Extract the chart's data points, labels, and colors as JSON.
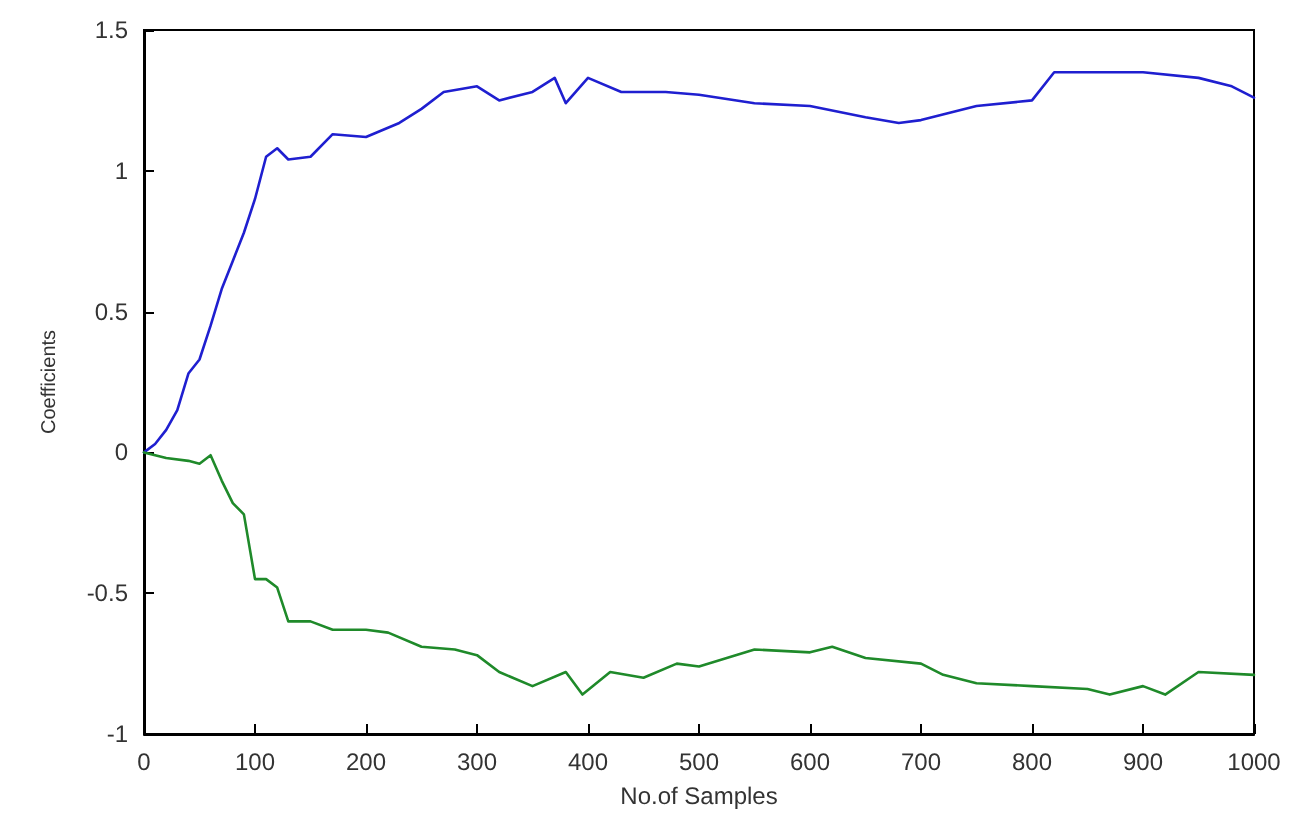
{
  "chart_data": {
    "type": "line",
    "xlabel": "No.of Samples",
    "ylabel": "Coefficients",
    "xlim": [
      0,
      1000
    ],
    "xticks": [
      0,
      100,
      200,
      300,
      400,
      500,
      600,
      700,
      800,
      900,
      1000
    ],
    "ylim": [
      -1,
      1.5
    ],
    "yticks": [
      -1,
      -0.5,
      0,
      0.5,
      1,
      1.5
    ],
    "grid": false,
    "marker": "none",
    "line_style": "solid",
    "series": [
      {
        "color": "#1f1fd0",
        "x": [
          0,
          10,
          20,
          30,
          40,
          50,
          60,
          70,
          80,
          90,
          100,
          110,
          120,
          130,
          150,
          170,
          200,
          230,
          250,
          270,
          300,
          320,
          350,
          370,
          380,
          400,
          430,
          470,
          500,
          550,
          600,
          650,
          680,
          700,
          750,
          800,
          820,
          850,
          900,
          950,
          980,
          1000
        ],
        "values": [
          0.0,
          0.03,
          0.08,
          0.15,
          0.28,
          0.33,
          0.45,
          0.58,
          0.68,
          0.78,
          0.9,
          1.05,
          1.08,
          1.04,
          1.05,
          1.13,
          1.12,
          1.17,
          1.22,
          1.28,
          1.3,
          1.25,
          1.28,
          1.33,
          1.24,
          1.33,
          1.28,
          1.28,
          1.27,
          1.24,
          1.23,
          1.19,
          1.17,
          1.18,
          1.23,
          1.25,
          1.35,
          1.35,
          1.35,
          1.33,
          1.3,
          1.26
        ]
      },
      {
        "color": "#1f8a2a",
        "x": [
          0,
          20,
          40,
          50,
          60,
          70,
          80,
          90,
          100,
          110,
          120,
          130,
          150,
          170,
          200,
          220,
          250,
          280,
          300,
          320,
          350,
          380,
          395,
          420,
          450,
          480,
          500,
          550,
          600,
          620,
          650,
          700,
          720,
          750,
          800,
          850,
          870,
          900,
          920,
          950,
          1000
        ],
        "values": [
          0.0,
          -0.02,
          -0.03,
          -0.04,
          -0.01,
          -0.1,
          -0.18,
          -0.22,
          -0.45,
          -0.45,
          -0.48,
          -0.6,
          -0.6,
          -0.63,
          -0.63,
          -0.64,
          -0.69,
          -0.7,
          -0.72,
          -0.78,
          -0.83,
          -0.78,
          -0.86,
          -0.78,
          -0.8,
          -0.75,
          -0.76,
          -0.7,
          -0.71,
          -0.69,
          -0.73,
          -0.75,
          -0.79,
          -0.82,
          -0.83,
          -0.84,
          -0.86,
          -0.83,
          -0.86,
          -0.78,
          -0.79
        ]
      }
    ]
  }
}
